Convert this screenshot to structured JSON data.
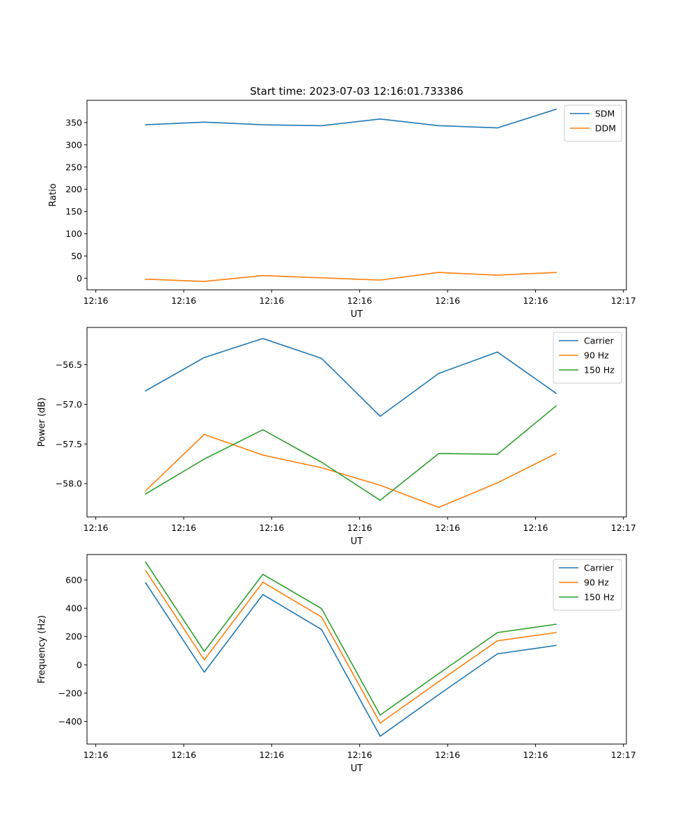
{
  "title": "Start time: 2023-07-03 12:16:01.733386",
  "colors": {
    "blue": "#1f77b4",
    "orange": "#ff7f0e",
    "green": "#2ca02c"
  },
  "chart_data": [
    {
      "type": "line",
      "title": "Start time: 2023-07-03 12:16:01.733386",
      "xlabel": "UT",
      "ylabel": "Ratio",
      "x": [
        1,
        2,
        3,
        4,
        5,
        6,
        7,
        8
      ],
      "xlim": [
        0.0,
        9.2
      ],
      "xticks": [
        0.15,
        1.65,
        3.15,
        4.65,
        6.15,
        7.65,
        9.15
      ],
      "xtick_labels": [
        "12:16",
        "12:16",
        "12:16",
        "12:16",
        "12:16",
        "12:16",
        "12:17"
      ],
      "ylim": [
        -26,
        400
      ],
      "yticks": [
        0,
        50,
        100,
        150,
        200,
        250,
        300,
        350
      ],
      "ytick_labels": [
        "0",
        "50",
        "100",
        "150",
        "200",
        "250",
        "300",
        "350"
      ],
      "legend": "top-right",
      "series": [
        {
          "name": "SDM",
          "color": "#1f77b4",
          "values": [
            345,
            351,
            345,
            343,
            358,
            343,
            338,
            380
          ]
        },
        {
          "name": "DDM",
          "color": "#ff7f0e",
          "values": [
            -2,
            -7,
            6,
            1,
            -4,
            13,
            7,
            13
          ]
        }
      ]
    },
    {
      "type": "line",
      "title": "",
      "xlabel": "UT",
      "ylabel": "Power (dB)",
      "x": [
        1,
        2,
        3,
        4,
        5,
        6,
        7,
        8
      ],
      "xlim": [
        0.0,
        9.2
      ],
      "xticks": [
        0.15,
        1.65,
        3.15,
        4.65,
        6.15,
        7.65,
        9.15
      ],
      "xtick_labels": [
        "12:16",
        "12:16",
        "12:16",
        "12:16",
        "12:16",
        "12:16",
        "12:17"
      ],
      "ylim": [
        -58.42,
        -56.03
      ],
      "yticks": [
        -58.0,
        -57.5,
        -57.0,
        -56.5
      ],
      "ytick_labels": [
        "−58.0",
        "−57.5",
        "−57.0",
        "−56.5"
      ],
      "legend": "top-right",
      "series": [
        {
          "name": "Carrier",
          "color": "#1f77b4",
          "values": [
            -56.83,
            -56.41,
            -56.17,
            -56.42,
            -57.15,
            -56.61,
            -56.34,
            -56.86
          ]
        },
        {
          "name": "90 Hz",
          "color": "#ff7f0e",
          "values": [
            -58.09,
            -57.38,
            -57.64,
            -57.8,
            -58.02,
            -58.3,
            -57.99,
            -57.62
          ]
        },
        {
          "name": "150 Hz",
          "color": "#2ca02c",
          "values": [
            -58.13,
            -57.69,
            -57.32,
            -57.73,
            -58.21,
            -57.62,
            -57.63,
            -57.02
          ]
        }
      ]
    },
    {
      "type": "line",
      "title": "",
      "xlabel": "UT",
      "ylabel": "Frequency (Hz)",
      "x": [
        1,
        2,
        3,
        4,
        5,
        6,
        7,
        8
      ],
      "xlim": [
        0.0,
        9.2
      ],
      "xticks": [
        0.15,
        1.65,
        3.15,
        4.65,
        6.15,
        7.65,
        9.15
      ],
      "xtick_labels": [
        "12:16",
        "12:16",
        "12:16",
        "12:16",
        "12:16",
        "12:16",
        "12:17"
      ],
      "ylim": [
        -560,
        780
      ],
      "yticks": [
        -400,
        -200,
        0,
        200,
        400,
        600
      ],
      "ytick_labels": [
        "−400",
        "−200",
        "0",
        "200",
        "400",
        "600"
      ],
      "legend": "top-right",
      "series": [
        {
          "name": "Carrier",
          "color": "#1f77b4",
          "values": [
            580,
            -52,
            497,
            250,
            -505,
            -210,
            78,
            137
          ]
        },
        {
          "name": "90 Hz",
          "color": "#ff7f0e",
          "values": [
            667,
            35,
            585,
            338,
            -412,
            -118,
            170,
            228
          ]
        },
        {
          "name": "150 Hz",
          "color": "#2ca02c",
          "values": [
            727,
            95,
            640,
            398,
            -355,
            -62,
            228,
            287
          ]
        }
      ]
    }
  ]
}
